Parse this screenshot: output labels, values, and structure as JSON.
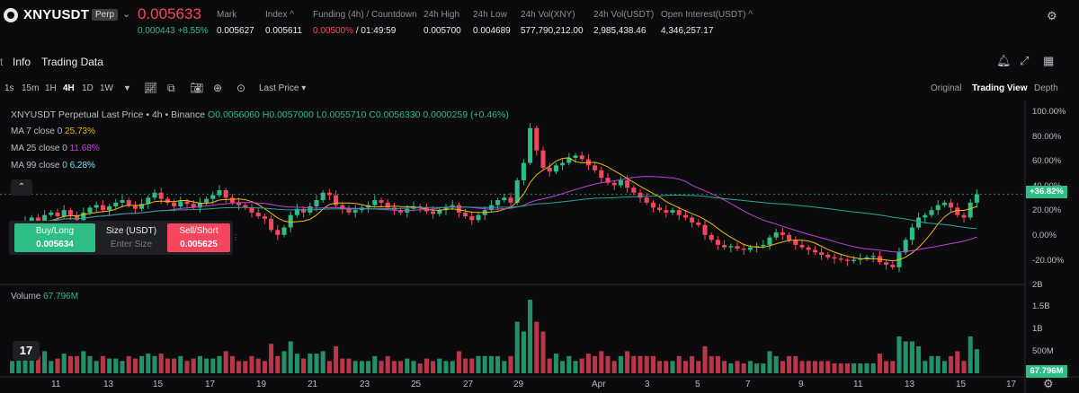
{
  "ticker": {
    "symbol": "XNYUSDT",
    "badge": "Perp",
    "caret": "⌄",
    "price": "0.005633",
    "change_abs": "0.000443",
    "change_pct": "+8.55%",
    "stats": [
      {
        "label": "Mark",
        "value": "0.005627"
      },
      {
        "label": "Index ^",
        "value": "0.005611"
      },
      {
        "label": "Funding (4h) / Countdown",
        "value_red": "0.00500%",
        "value": " / 01:49:59"
      },
      {
        "label": "24h High",
        "value": "0.005700"
      },
      {
        "label": "24h Low",
        "value": "0.004689"
      },
      {
        "label": "24h Vol(XNY)",
        "value": "577,790,212.00"
      },
      {
        "label": "24h Vol(USDT)",
        "value": "2,985,438.46"
      },
      {
        "label": "Open Interest(USDT) ^",
        "value": "4,346,257.17"
      }
    ]
  },
  "tabs": {
    "info": "Info",
    "trading_data": "Trading Data"
  },
  "toolbar": {
    "timeframes": [
      "1s",
      "15m",
      "1H",
      "4H",
      "1D",
      "1W"
    ],
    "active_tf": "4H",
    "price_mode": "Last Price",
    "views": [
      "Original",
      "Trading View",
      "Depth"
    ],
    "active_view": "Trading View"
  },
  "legend": {
    "title": "XNYUSDT Perpetual Last Price • 4h • Binance",
    "ohlc": "O0.0056060 H0.0057000 L0.0055710 C0.0056330 0.0000259 (+0.46%)",
    "ma7_label": "MA 7 close 0",
    "ma7_value": "25.73%",
    "ma25_label": "MA 25 close 0",
    "ma25_value": "11.68%",
    "ma99_label": "MA 99 close 0",
    "ma99_value": "6.28%"
  },
  "order": {
    "buy_label": "Buy/Long",
    "buy_price": "0.005634",
    "size_label": "Size (USDT)",
    "size_placeholder": "Enter Size",
    "sell_label": "Sell/Short",
    "sell_price": "0.005625"
  },
  "volume": {
    "label": "Volume",
    "value": "67.796M"
  },
  "y_axis": [
    "100.00%",
    "80.00%",
    "60.00%",
    "40.00%",
    "20.00%",
    "0.00%",
    "-20.00%"
  ],
  "current_tag": "+36.82%",
  "vol_axis": [
    "2B",
    "1.5B",
    "1B",
    "500M"
  ],
  "vol_tag": "67.796M",
  "x_axis": [
    "11",
    "13",
    "15",
    "17",
    "19",
    "21",
    "23",
    "25",
    "27",
    "29",
    "Apr",
    "3",
    "5",
    "7",
    "9",
    "11",
    "13",
    "15",
    "17"
  ],
  "colors": {
    "up": "#2ebd85",
    "down": "#f6465d",
    "ma7": "#f0b90b",
    "ma25": "#c13fd6",
    "ma99": "#26a69a"
  },
  "chart_data": {
    "type": "candlestick",
    "y_unit": "percent",
    "ylim": [
      -25,
      105
    ],
    "closes": [
      8,
      12,
      15,
      18,
      14,
      20,
      22,
      19,
      24,
      20,
      16,
      22,
      26,
      28,
      24,
      27,
      30,
      32,
      28,
      25,
      29,
      34,
      38,
      33,
      30,
      27,
      31,
      29,
      26,
      30,
      33,
      36,
      40,
      34,
      30,
      28,
      26,
      22,
      19,
      17,
      8,
      4,
      10,
      20,
      25,
      22,
      27,
      32,
      38,
      36,
      28,
      25,
      22,
      24,
      26,
      28,
      32,
      30,
      26,
      24,
      22,
      25,
      27,
      26,
      23,
      21,
      24,
      26,
      28,
      22,
      19,
      16,
      20,
      24,
      28,
      32,
      34,
      30,
      48,
      62,
      90,
      72,
      58,
      55,
      60,
      62,
      66,
      68,
      65,
      60,
      56,
      50,
      46,
      44,
      48,
      42,
      38,
      34,
      30,
      26,
      24,
      22,
      24,
      20,
      18,
      14,
      12,
      4,
      0,
      -4,
      -6,
      -5,
      -7,
      -8,
      -6,
      -5,
      -4,
      2,
      6,
      4,
      0,
      -4,
      -6,
      -8,
      -10,
      -12,
      -14,
      -15,
      -16,
      -17,
      -16,
      -15,
      -14,
      -13,
      -18,
      -20,
      -22,
      -10,
      0,
      10,
      18,
      20,
      24,
      28,
      30,
      26,
      20,
      18,
      30,
      36.82
    ]
  }
}
